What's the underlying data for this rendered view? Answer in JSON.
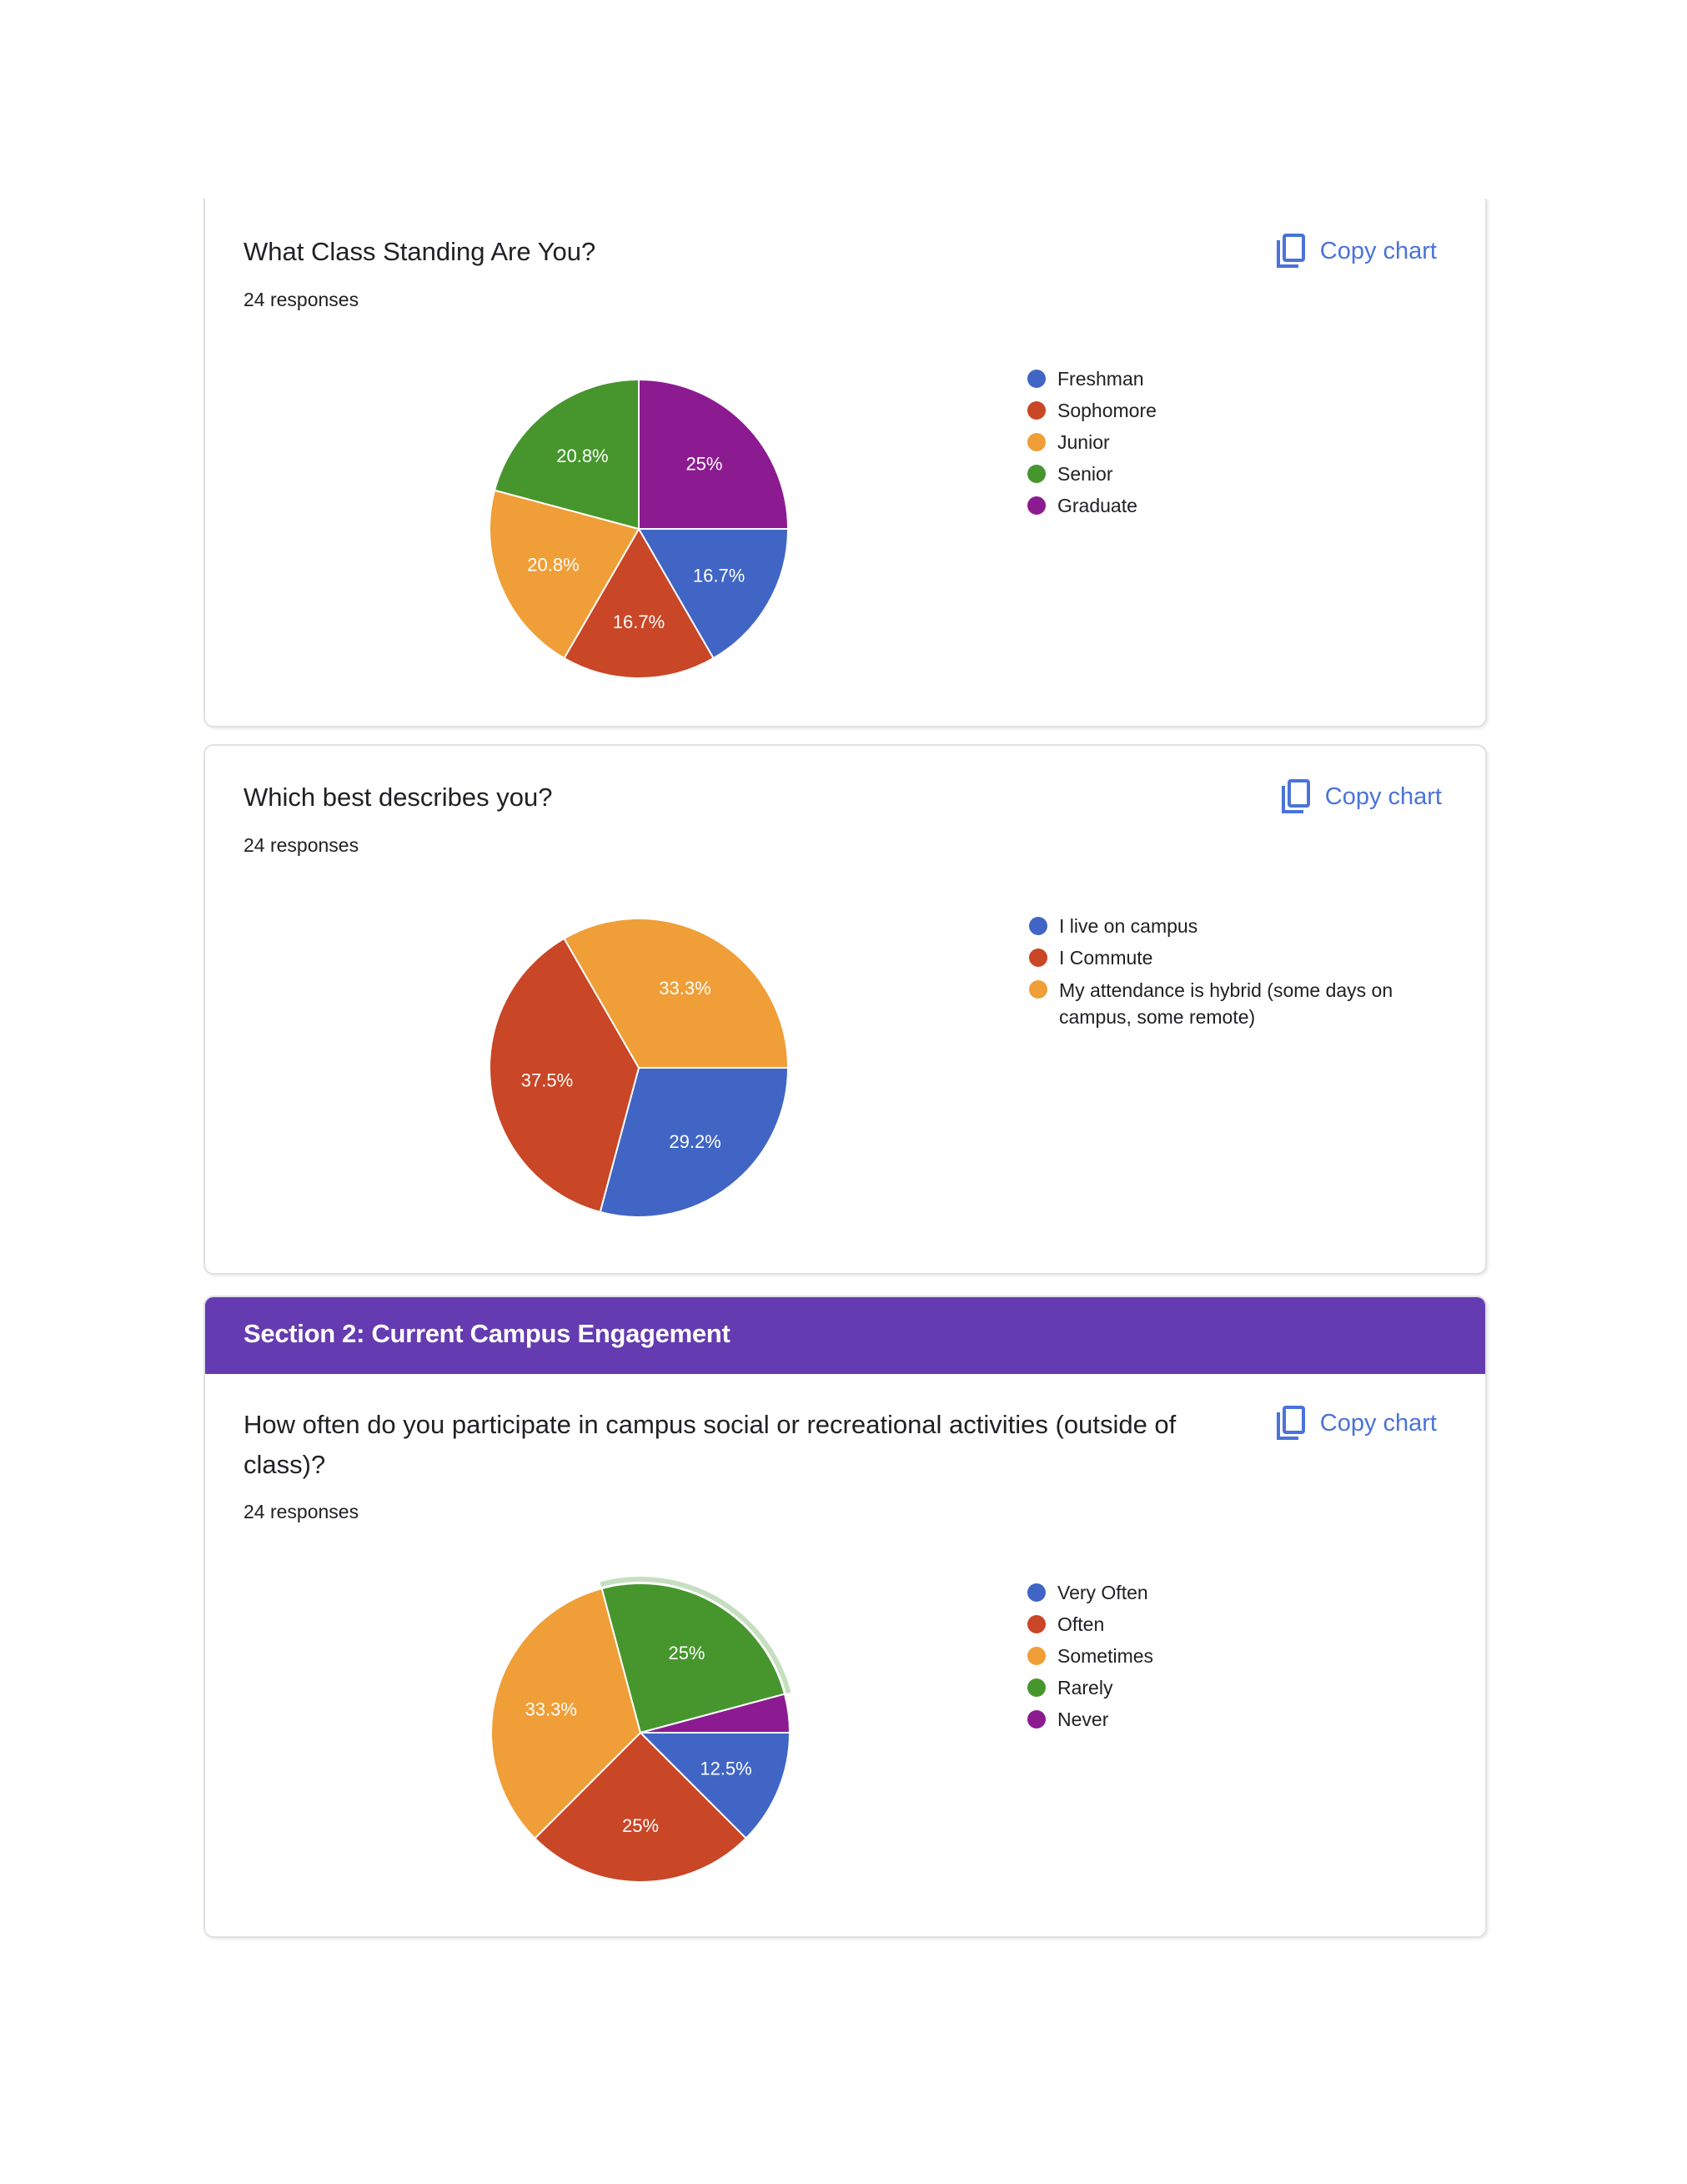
{
  "colors": {
    "blue": "#4065c5",
    "red": "#c94626",
    "orange": "#f09e37",
    "green": "#46962d",
    "purple": "#8c1b92",
    "header": "#643bb0",
    "link": "#4a73d9"
  },
  "copy_label": "Copy chart",
  "section2_title": "Section 2: Current Campus Engagement",
  "chart_data": [
    {
      "type": "pie",
      "title": "What Class Standing Are You?",
      "responses": "24 responses",
      "categories": [
        "Freshman",
        "Sophomore",
        "Junior",
        "Senior",
        "Graduate"
      ],
      "values": [
        4,
        4,
        5,
        5,
        6
      ],
      "labels": [
        "16.7%",
        "16.7%",
        "20.8%",
        "20.8%",
        "25%"
      ],
      "colors": [
        "#4065c5",
        "#c94626",
        "#f09e37",
        "#46962d",
        "#8c1b92"
      ],
      "legend": "right"
    },
    {
      "type": "pie",
      "title": "Which best describes you?",
      "responses": "24 responses",
      "categories": [
        "I live on campus",
        "I Commute",
        "My attendance is hybrid (some days on campus, some remote)"
      ],
      "values": [
        7,
        9,
        8
      ],
      "labels": [
        "29.2%",
        "37.5%",
        "33.3%"
      ],
      "colors": [
        "#4065c5",
        "#c94626",
        "#f09e37"
      ],
      "legend": "right"
    },
    {
      "type": "pie",
      "title": "How often do you participate in campus social or recreational activities (outside of class)?",
      "responses": "24 responses",
      "categories": [
        "Very Often",
        "Often",
        "Sometimes",
        "Rarely",
        "Never"
      ],
      "values": [
        3,
        6,
        8,
        6,
        1
      ],
      "labels": [
        "12.5%",
        "25%",
        "33.3%",
        "25%",
        ""
      ],
      "colors": [
        "#4065c5",
        "#c94626",
        "#f09e37",
        "#46962d",
        "#8c1b92"
      ],
      "highlighted": "Rarely",
      "legend": "right"
    }
  ]
}
